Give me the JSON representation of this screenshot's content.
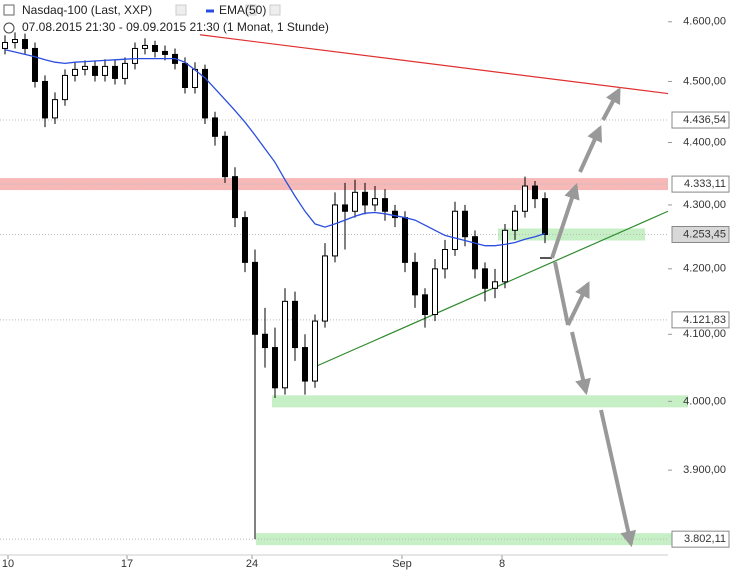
{
  "chart_data": {
    "type": "candlestick",
    "title": "Nasdaq-100 (Last, XXP)",
    "subtitle": "07.08.2015 21:30 - 09.09.2015 21:30 (1 Monat, 1 Stunde)",
    "log_scale": true,
    "grid": false,
    "up_color": "#ffffff",
    "down_color": "#000000",
    "open": [
      4555,
      4565,
      4570,
      4555,
      4500,
      4440,
      4470,
      4510,
      4520,
      4525,
      4510,
      4525,
      4505,
      4530,
      4555,
      4560,
      4550,
      4545,
      4530,
      4490,
      4520,
      4440,
      4410,
      4345,
      4280,
      4210,
      4100,
      4080,
      4020,
      4150,
      4080,
      4030,
      4120,
      4220,
      4300,
      4290,
      4320,
      4300,
      4310,
      4290,
      4280,
      4210,
      4160,
      4130,
      4200,
      4230,
      4290,
      4250,
      4200,
      4170,
      4180,
      4260,
      4290,
      4330,
      4310
    ],
    "high": [
      4577,
      4582,
      4580,
      4565,
      4510,
      4482,
      4520,
      4532,
      4535,
      4535,
      4537,
      4535,
      4540,
      4565,
      4572,
      4568,
      4560,
      4555,
      4540,
      4532,
      4528,
      4450,
      4418,
      4360,
      4290,
      4230,
      4140,
      4110,
      4170,
      4165,
      4100,
      4130,
      4240,
      4320,
      4335,
      4340,
      4335,
      4330,
      4325,
      4300,
      4290,
      4225,
      4170,
      4215,
      4245,
      4305,
      4300,
      4260,
      4210,
      4200,
      4270,
      4300,
      4345,
      4338,
      4320
    ],
    "low": [
      4545,
      4555,
      4545,
      4490,
      4425,
      4430,
      4460,
      4500,
      4510,
      4500,
      4500,
      4495,
      4495,
      4520,
      4545,
      4540,
      4535,
      4520,
      4480,
      4480,
      4430,
      4395,
      4335,
      4265,
      4195,
      3802.11,
      4050,
      4005,
      4010,
      4060,
      4010,
      4020,
      4110,
      4210,
      4230,
      4280,
      4285,
      4290,
      4275,
      4265,
      4195,
      4140,
      4110,
      4120,
      4185,
      4220,
      4235,
      4185,
      4150,
      4155,
      4170,
      4245,
      4280,
      4295,
      4240
    ],
    "close": [
      4565,
      4570,
      4555,
      4500,
      4440,
      4470,
      4510,
      4520,
      4525,
      4510,
      4525,
      4505,
      4530,
      4555,
      4560,
      4550,
      4545,
      4530,
      4490,
      4520,
      4440,
      4410,
      4345,
      4280,
      4210,
      4100,
      4080,
      4020,
      4150,
      4080,
      4030,
      4120,
      4220,
      4300,
      4290,
      4320,
      4300,
      4310,
      4290,
      4280,
      4210,
      4160,
      4130,
      4200,
      4230,
      4290,
      4250,
      4200,
      4170,
      4180,
      4260,
      4290,
      4330,
      4310,
      4253.45
    ],
    "overlays": [
      {
        "name": "EMA(50)",
        "color": "#2a4ddf",
        "values": [
          4553,
          4549,
          4545,
          4541,
          4536,
          4532,
          4530,
          4532,
          4533,
          4534,
          4535,
          4536,
          4537,
          4538,
          4538,
          4538,
          4538,
          4538,
          4532,
          4519,
          4506,
          4488,
          4470,
          4452,
          4433,
          4412,
          4390,
          4368,
          4340,
          4314,
          4290,
          4270,
          4265,
          4270,
          4276,
          4282,
          4287,
          4288,
          4286,
          4283,
          4280,
          4276,
          4268,
          4260,
          4252,
          4248,
          4244,
          4240,
          4236,
          4236,
          4238,
          4241,
          4246,
          4250,
          4255
        ]
      }
    ],
    "xlim": [
      0,
      66.8
    ],
    "xticks": [
      {
        "value": 0.8,
        "label": "10"
      },
      {
        "value": 12.7,
        "label": "17"
      },
      {
        "value": 25.2,
        "label": "24"
      },
      {
        "value": 40.2,
        "label": "Sep"
      },
      {
        "value": 50.2,
        "label": "8"
      }
    ],
    "ylim": [
      3780,
      4637
    ],
    "yticks": [
      {
        "value": 3900,
        "label": "3.900,00"
      },
      {
        "value": 4000,
        "label": "4.000,00"
      },
      {
        "value": 4100,
        "label": "4.100,00"
      },
      {
        "value": 4200,
        "label": "4.200,00"
      },
      {
        "value": 4300,
        "label": "4.300,00"
      },
      {
        "value": 4400,
        "label": "4.400,00"
      },
      {
        "value": 4500,
        "label": "4.500,00"
      },
      {
        "value": 4600,
        "label": "4.600,00"
      }
    ],
    "price_labels": [
      {
        "value": 4436.54,
        "label": "4.436,54"
      },
      {
        "value": 4333.11,
        "label": "4.333,11"
      },
      {
        "value": 4253.45,
        "label": "4.253,45"
      },
      {
        "value": 4121.83,
        "label": "4.121,83"
      },
      {
        "value": 3802.11,
        "label": "3.802,11"
      }
    ],
    "zones": [
      {
        "price": 4333.11,
        "from": 0,
        "to": 66.8,
        "color": "#f7b8b8"
      },
      {
        "price": 4253.45,
        "from": 49.8,
        "to": 64.5,
        "color": "#c6efc6"
      },
      {
        "price": 4000,
        "from": 27.2,
        "to": 68.8,
        "color": "#c6efc6"
      },
      {
        "price": 3802.11,
        "from": 25.6,
        "to": 68.8,
        "color": "#c6efc6"
      }
    ],
    "trendlines": [
      {
        "from": [
          20,
          4578
        ],
        "to": [
          66.8,
          4480
        ],
        "color": "#e03030"
      },
      {
        "from": [
          31.3,
          4050
        ],
        "to": [
          66.8,
          4290
        ],
        "color": "#2e8b2e"
      }
    ]
  }
}
